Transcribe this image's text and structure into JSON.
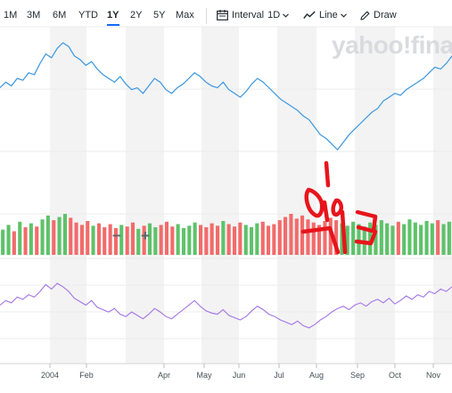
{
  "toolbar": {
    "ranges": [
      "1M",
      "3M",
      "6M",
      "YTD",
      "1Y",
      "2Y",
      "5Y",
      "Max"
    ],
    "active_range": "1Y",
    "interval_label": "Interval",
    "interval_value": "1D",
    "chart_type_label": "Line",
    "draw_label": "Draw"
  },
  "watermark": "yahoo!fina",
  "zoom": {
    "minus": "−",
    "plus": "+"
  },
  "annotation_color": "#e8141c",
  "chart_data": {
    "type": "line",
    "title": "",
    "x_ticks": [
      "2004",
      "Feb",
      "Apr",
      "May",
      "Jun",
      "Jul",
      "Aug",
      "Sep",
      "Oct",
      "Nov"
    ],
    "price_series": {
      "color": "#3a97e0",
      "values": [
        55,
        58,
        56,
        60,
        59,
        63,
        62,
        68,
        73,
        71,
        76,
        79,
        77,
        72,
        70,
        67,
        69,
        65,
        62,
        60,
        58,
        61,
        57,
        54,
        55,
        52,
        56,
        60,
        58,
        54,
        52,
        55,
        57,
        60,
        63,
        61,
        58,
        56,
        55,
        58,
        54,
        52,
        50,
        53,
        57,
        60,
        58,
        55,
        52,
        49,
        47,
        45,
        43,
        40,
        38,
        34,
        30,
        28,
        25,
        22,
        26,
        30,
        33,
        36,
        39,
        42,
        44,
        48,
        50,
        52,
        51,
        54,
        56,
        58,
        60,
        63,
        66,
        65,
        68,
        72
      ]
    },
    "volume_series": {
      "up_color": "#5ec26a",
      "down_color": "#f26b6b",
      "values": [
        32,
        38,
        30,
        42,
        35,
        40,
        36,
        45,
        50,
        44,
        48,
        52,
        47,
        41,
        38,
        43,
        37,
        40,
        35,
        39,
        34,
        38,
        36,
        41,
        33,
        37,
        40,
        35,
        38,
        42,
        36,
        39,
        34,
        37,
        41,
        38,
        35,
        40,
        37,
        43,
        39,
        36,
        41,
        38,
        35,
        40,
        42,
        37,
        39,
        44,
        48,
        52,
        46,
        50,
        45,
        41,
        38,
        43,
        47,
        44,
        40,
        37,
        42,
        39,
        36,
        41,
        38,
        44,
        40,
        37,
        42,
        39,
        45,
        41,
        38,
        43,
        40,
        44,
        39,
        42
      ]
    },
    "indicator_series": {
      "color": "#a374e6",
      "values": [
        48,
        52,
        50,
        55,
        53,
        57,
        55,
        60,
        66,
        62,
        67,
        64,
        60,
        54,
        51,
        48,
        52,
        46,
        44,
        42,
        45,
        40,
        38,
        42,
        39,
        36,
        40,
        45,
        42,
        38,
        36,
        40,
        44,
        48,
        52,
        47,
        43,
        41,
        40,
        44,
        39,
        37,
        35,
        38,
        43,
        47,
        44,
        40,
        38,
        35,
        33,
        31,
        34,
        30,
        28,
        31,
        35,
        38,
        42,
        45,
        47,
        44,
        48,
        50,
        47,
        51,
        53,
        50,
        54,
        49,
        52,
        56,
        53,
        57,
        55,
        60,
        58,
        62,
        60,
        64
      ]
    }
  }
}
